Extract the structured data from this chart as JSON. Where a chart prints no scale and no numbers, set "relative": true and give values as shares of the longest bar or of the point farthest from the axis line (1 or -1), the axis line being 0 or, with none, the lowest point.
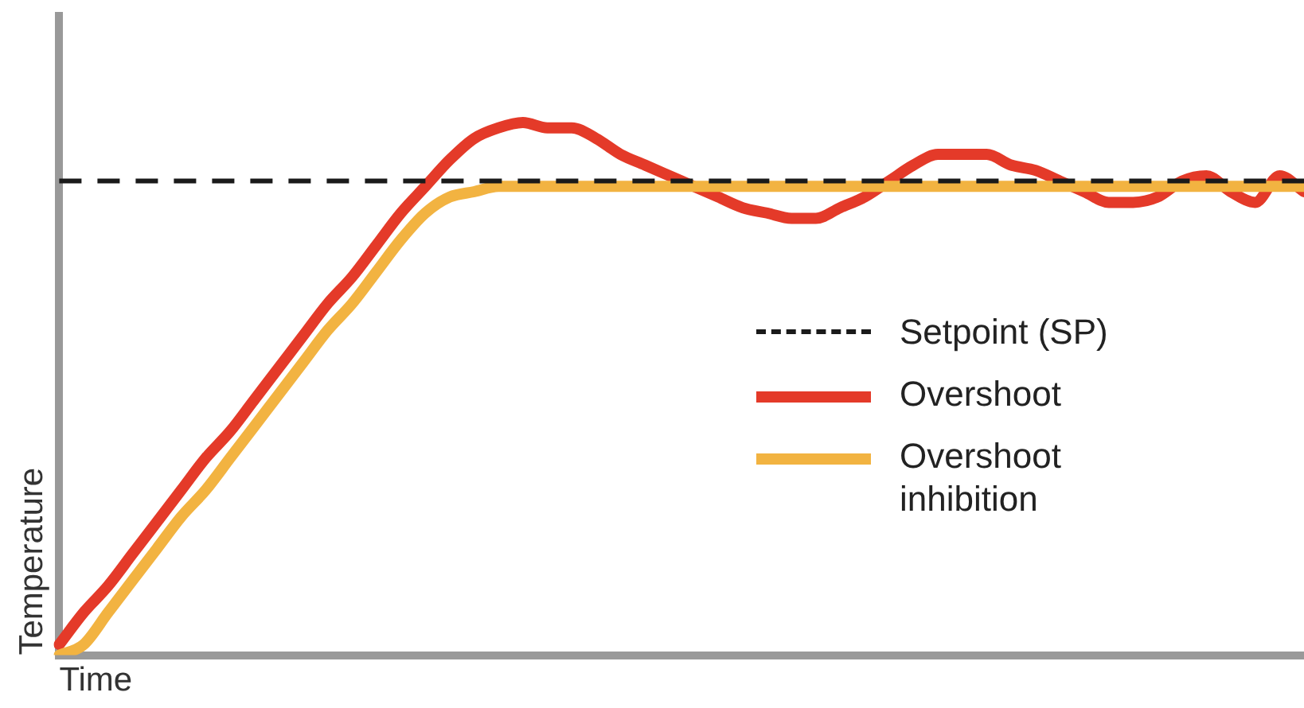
{
  "chart_data": {
    "type": "line",
    "relative": true,
    "xlabel": "Time",
    "ylabel": "Temperature",
    "legend": "right",
    "marker": "none",
    "grid": false,
    "tick_labels": false,
    "categories": [
      null,
      null,
      null,
      null,
      null,
      null,
      null,
      null,
      null,
      null,
      null,
      null,
      null,
      null,
      null,
      null,
      null,
      null,
      null,
      null,
      null,
      null,
      null,
      null,
      null,
      null,
      null,
      null,
      null,
      null,
      null,
      null,
      null,
      null,
      null,
      null,
      null,
      null,
      null,
      null,
      null,
      null,
      null,
      null,
      null,
      null,
      null,
      null,
      null,
      null,
      null,
      null
    ],
    "ref_lines": [
      {
        "axis": "y",
        "value": 0.89,
        "label": "Setpoint (SP)",
        "color": "#1a1a1a",
        "line_style": "dashed"
      }
    ],
    "series": [
      {
        "name": "Overshoot",
        "color": "#e43a29",
        "values": [
          0.02,
          0.08,
          0.13,
          0.19,
          0.25,
          0.31,
          0.37,
          0.42,
          0.48,
          0.54,
          0.6,
          0.66,
          0.71,
          0.77,
          0.83,
          0.88,
          0.93,
          0.97,
          0.99,
          1.0,
          0.99,
          0.99,
          0.97,
          0.94,
          0.92,
          0.9,
          0.88,
          0.86,
          0.84,
          0.83,
          0.82,
          0.82,
          0.84,
          0.86,
          0.89,
          0.92,
          0.94,
          0.94,
          0.94,
          0.92,
          0.91,
          0.89,
          0.87,
          0.85,
          0.85,
          0.86,
          0.89,
          0.9,
          0.87,
          0.85,
          0.9,
          0.87
        ]
      },
      {
        "name": "Overshoot inhibition",
        "color": "#f2b341",
        "values": [
          0.0,
          0.02,
          0.08,
          0.14,
          0.2,
          0.26,
          0.31,
          0.37,
          0.43,
          0.49,
          0.55,
          0.61,
          0.66,
          0.72,
          0.78,
          0.83,
          0.86,
          0.87,
          0.88,
          0.88,
          0.88,
          0.88,
          0.88,
          0.88,
          0.88,
          0.88,
          0.88,
          0.88,
          0.88,
          0.88,
          0.88,
          0.88,
          0.88,
          0.88,
          0.88,
          0.88,
          0.88,
          0.88,
          0.88,
          0.88,
          0.88,
          0.88,
          0.88,
          0.88,
          0.88,
          0.88,
          0.88,
          0.88,
          0.88,
          0.88,
          0.88,
          0.88
        ]
      }
    ]
  }
}
